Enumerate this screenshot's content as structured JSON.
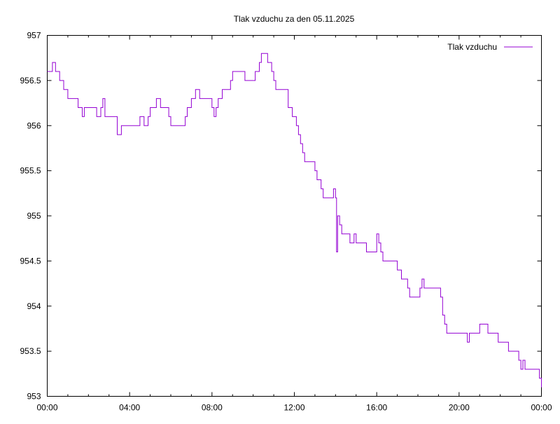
{
  "chart_data": {
    "type": "line",
    "title": "Tlak vzduchu za den 05.11.2025",
    "xlabel": "",
    "ylabel": "",
    "xlim": [
      0,
      24
    ],
    "ylim": [
      953,
      957
    ],
    "grid": false,
    "legend_position": "top-right",
    "x_tick_values": [
      0,
      4,
      8,
      12,
      16,
      20,
      24
    ],
    "x_tick_labels": [
      "00:00",
      "04:00",
      "08:00",
      "12:00",
      "16:00",
      "20:00",
      "00:00"
    ],
    "y_tick_values": [
      953,
      953.5,
      954,
      954.5,
      955,
      955.5,
      956,
      956.5,
      957
    ],
    "y_tick_labels": [
      "953",
      "953.5",
      "954",
      "954.5",
      "955",
      "955.5",
      "956",
      "956.5",
      "957"
    ],
    "series": [
      {
        "name": "Tlak vzduchu",
        "color": "#9400d3",
        "x_unit": "hours",
        "points": [
          [
            0.0,
            956.6
          ],
          [
            0.25,
            956.7
          ],
          [
            0.4,
            956.6
          ],
          [
            0.6,
            956.5
          ],
          [
            0.8,
            956.4
          ],
          [
            1.0,
            956.3
          ],
          [
            1.5,
            956.2
          ],
          [
            1.7,
            956.1
          ],
          [
            1.8,
            956.2
          ],
          [
            2.2,
            956.2
          ],
          [
            2.4,
            956.1
          ],
          [
            2.6,
            956.2
          ],
          [
            2.7,
            956.3
          ],
          [
            2.8,
            956.1
          ],
          [
            3.2,
            956.1
          ],
          [
            3.4,
            955.9
          ],
          [
            3.6,
            956.0
          ],
          [
            4.3,
            956.0
          ],
          [
            4.5,
            956.1
          ],
          [
            4.7,
            956.0
          ],
          [
            4.9,
            956.1
          ],
          [
            5.0,
            956.2
          ],
          [
            5.3,
            956.3
          ],
          [
            5.5,
            956.2
          ],
          [
            5.7,
            956.2
          ],
          [
            5.9,
            956.1
          ],
          [
            6.0,
            956.0
          ],
          [
            6.5,
            956.0
          ],
          [
            6.7,
            956.1
          ],
          [
            6.8,
            956.2
          ],
          [
            7.0,
            956.3
          ],
          [
            7.2,
            956.4
          ],
          [
            7.4,
            956.3
          ],
          [
            7.9,
            956.3
          ],
          [
            8.0,
            956.2
          ],
          [
            8.1,
            956.1
          ],
          [
            8.2,
            956.2
          ],
          [
            8.3,
            956.3
          ],
          [
            8.5,
            956.4
          ],
          [
            8.8,
            956.4
          ],
          [
            8.9,
            956.5
          ],
          [
            9.0,
            956.6
          ],
          [
            9.1,
            956.6
          ],
          [
            9.5,
            956.6
          ],
          [
            9.6,
            956.5
          ],
          [
            9.8,
            956.5
          ],
          [
            10.1,
            956.6
          ],
          [
            10.3,
            956.7
          ],
          [
            10.4,
            956.8
          ],
          [
            10.6,
            956.8
          ],
          [
            10.7,
            956.7
          ],
          [
            10.9,
            956.6
          ],
          [
            11.0,
            956.5
          ],
          [
            11.1,
            956.4
          ],
          [
            11.5,
            956.4
          ],
          [
            11.7,
            956.2
          ],
          [
            11.9,
            956.1
          ],
          [
            12.1,
            956.0
          ],
          [
            12.2,
            955.9
          ],
          [
            12.3,
            955.8
          ],
          [
            12.4,
            955.7
          ],
          [
            12.5,
            955.6
          ],
          [
            12.9,
            955.6
          ],
          [
            13.0,
            955.5
          ],
          [
            13.1,
            955.4
          ],
          [
            13.3,
            955.3
          ],
          [
            13.4,
            955.2
          ],
          [
            13.7,
            955.2
          ],
          [
            13.9,
            955.3
          ],
          [
            14.0,
            955.2
          ],
          [
            14.05,
            954.6
          ],
          [
            14.1,
            955.0
          ],
          [
            14.2,
            954.9
          ],
          [
            14.3,
            954.8
          ],
          [
            14.6,
            954.8
          ],
          [
            14.7,
            954.7
          ],
          [
            14.9,
            954.8
          ],
          [
            15.0,
            954.7
          ],
          [
            15.4,
            954.7
          ],
          [
            15.5,
            954.6
          ],
          [
            15.9,
            954.6
          ],
          [
            16.0,
            954.8
          ],
          [
            16.1,
            954.7
          ],
          [
            16.2,
            954.6
          ],
          [
            16.3,
            954.5
          ],
          [
            16.8,
            954.5
          ],
          [
            17.0,
            954.4
          ],
          [
            17.2,
            954.3
          ],
          [
            17.5,
            954.2
          ],
          [
            17.6,
            954.1
          ],
          [
            18.0,
            954.1
          ],
          [
            18.1,
            954.2
          ],
          [
            18.2,
            954.3
          ],
          [
            18.3,
            954.2
          ],
          [
            18.8,
            954.2
          ],
          [
            19.1,
            954.1
          ],
          [
            19.2,
            953.9
          ],
          [
            19.3,
            953.8
          ],
          [
            19.4,
            953.7
          ],
          [
            20.3,
            953.7
          ],
          [
            20.4,
            953.6
          ],
          [
            20.5,
            953.7
          ],
          [
            20.9,
            953.7
          ],
          [
            21.0,
            953.8
          ],
          [
            21.3,
            953.8
          ],
          [
            21.4,
            953.7
          ],
          [
            21.8,
            953.7
          ],
          [
            21.9,
            953.6
          ],
          [
            22.3,
            953.6
          ],
          [
            22.4,
            953.5
          ],
          [
            22.8,
            953.5
          ],
          [
            22.9,
            953.4
          ],
          [
            23.0,
            953.3
          ],
          [
            23.1,
            953.4
          ],
          [
            23.2,
            953.3
          ],
          [
            23.8,
            953.3
          ],
          [
            23.9,
            953.2
          ],
          [
            24.0,
            953.1
          ]
        ]
      }
    ]
  }
}
